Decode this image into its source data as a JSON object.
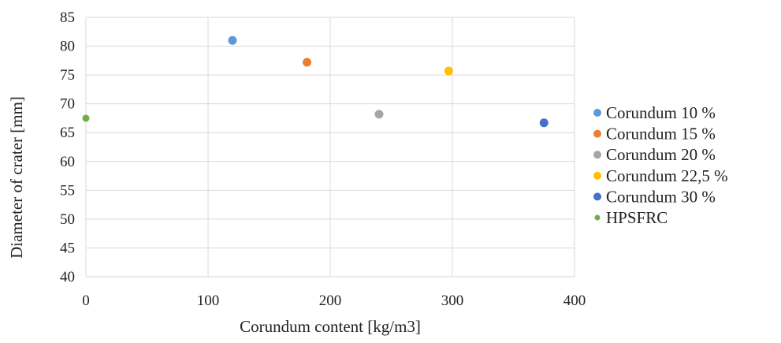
{
  "chart_data": {
    "type": "scatter",
    "title": "",
    "xlabel": "Corundum content [kg/m3]",
    "ylabel": "Diameter of crater [mm]",
    "xlim": [
      0,
      400
    ],
    "ylim": [
      40,
      85
    ],
    "x_ticks": [
      0,
      100,
      200,
      300,
      400
    ],
    "y_ticks": [
      40,
      45,
      50,
      55,
      60,
      65,
      70,
      75,
      80,
      85
    ],
    "grid": true,
    "legend_position": "right",
    "series": [
      {
        "name": "Corundum 10 %",
        "color": "#5B9BD5",
        "points": [
          {
            "x": 120,
            "y": 81
          }
        ]
      },
      {
        "name": "Corundum 15 %",
        "color": "#ED7D31",
        "points": [
          {
            "x": 181,
            "y": 77.2
          }
        ]
      },
      {
        "name": "Corundum 20 %",
        "color": "#A5A5A5",
        "points": [
          {
            "x": 240,
            "y": 68.2
          }
        ]
      },
      {
        "name": "Corundum 22,5 %",
        "color": "#FFC000",
        "points": [
          {
            "x": 297,
            "y": 75.7
          }
        ]
      },
      {
        "name": "Corundum 30 %",
        "color": "#4472C4",
        "points": [
          {
            "x": 375,
            "y": 66.7
          }
        ]
      },
      {
        "name": "HPSFRC",
        "color": "#70AD47",
        "points": [
          {
            "x": 0,
            "y": 67.5
          }
        ]
      }
    ]
  }
}
